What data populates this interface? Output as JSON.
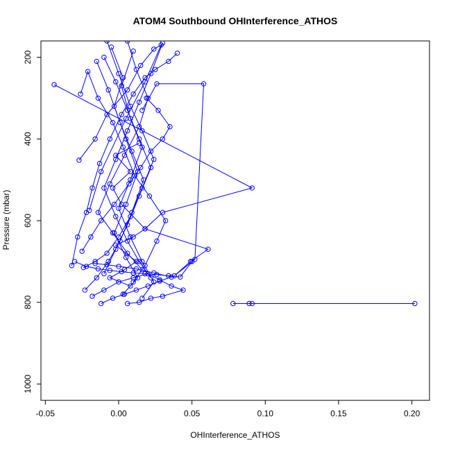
{
  "chart_data": {
    "type": "line",
    "title": "ATOM4 Southbound OHInterference_ATHOS",
    "xlabel": "OHInterference_ATHOS",
    "ylabel": "Pressure (mbar)",
    "xlim": [
      -0.053,
      0.212
    ],
    "ylim": [
      1040,
      160
    ],
    "y_reversed": true,
    "x_ticks": [
      -0.05,
      0.0,
      0.05,
      0.1,
      0.15,
      0.2
    ],
    "x_tick_labels": [
      "-0.05",
      "0.00",
      "0.05",
      "0.10",
      "0.15",
      "0.20"
    ],
    "y_ticks": [
      200,
      400,
      600,
      800,
      1000
    ],
    "y_tick_labels": [
      "200",
      "400",
      "600",
      "800",
      "1000"
    ],
    "grid": false,
    "marker": "open-circle",
    "color": "#0000ff",
    "series": [
      {
        "x": [
          0.202,
          0.091,
          0.089,
          0.078
        ],
        "y": [
          803,
          803,
          803,
          803
        ]
      },
      {
        "x": [
          0.016,
          0.026,
          0.058,
          0.052,
          0.038,
          0.049,
          0.061,
          0.018,
          0.002,
          -0.004,
          0.008,
          -0.002,
          0.014
        ],
        "y": [
          330,
          265,
          265,
          695,
          735,
          700,
          670,
          620,
          560,
          520,
          480,
          440,
          410
        ]
      },
      {
        "x": [
          -0.044,
          0.091,
          0.03,
          0.018,
          0.01,
          -0.002,
          0.012,
          0.004,
          -0.006,
          0.008
        ],
        "y": [
          267,
          520,
          580,
          620,
          640,
          660,
          700,
          720,
          740,
          760
        ]
      },
      {
        "x": [
          -0.026,
          -0.021,
          -0.014,
          -0.004,
          0.003,
          0.011,
          0.021,
          0.032,
          0.026,
          0.018,
          0.01
        ],
        "y": [
          290,
          235,
          300,
          360,
          420,
          490,
          540,
          600,
          650,
          710,
          750
        ]
      },
      {
        "x": [
          -0.027,
          -0.016,
          -0.008,
          0.006,
          0.015,
          0.024,
          0.029,
          0.018,
          0.005,
          -0.012,
          -0.02
        ],
        "y": [
          452,
          400,
          340,
          280,
          220,
          180,
          170,
          260,
          350,
          480,
          575
        ]
      },
      {
        "x": [
          -0.032,
          -0.028,
          -0.022,
          -0.018,
          -0.013,
          -0.006,
          0.002,
          0.01,
          0.018,
          0.025,
          0.034,
          0.04
        ],
        "y": [
          710,
          640,
          580,
          520,
          460,
          400,
          340,
          290,
          250,
          230,
          210,
          190
        ]
      },
      {
        "x": [
          -0.025,
          -0.019,
          -0.012,
          -0.003,
          0.007,
          0.015,
          0.022,
          0.03,
          0.035,
          0.027,
          0.019
        ],
        "y": [
          675,
          640,
          600,
          560,
          510,
          470,
          430,
          400,
          370,
          330,
          300
        ]
      },
      {
        "x": [
          -0.018,
          -0.01,
          0.0,
          0.01,
          0.02,
          0.028,
          0.036,
          0.044,
          0.03,
          0.022,
          0.014,
          0.006
        ],
        "y": [
          785,
          770,
          750,
          740,
          730,
          745,
          760,
          770,
          785,
          790,
          800,
          803
        ]
      },
      {
        "x": [
          -0.012,
          -0.004,
          0.004,
          0.012,
          0.02,
          0.028,
          0.036,
          0.024,
          0.012,
          0.0,
          -0.008,
          -0.016
        ],
        "y": [
          803,
          790,
          780,
          770,
          760,
          748,
          738,
          728,
          718,
          712,
          708,
          705
        ]
      },
      {
        "x": [
          -0.03,
          -0.022,
          -0.014,
          -0.006,
          0.002,
          0.01,
          0.018,
          0.026,
          0.034,
          0.042,
          0.05
        ],
        "y": [
          700,
          712,
          718,
          722,
          725,
          728,
          730,
          732,
          735,
          738,
          700
        ]
      },
      {
        "x": [
          -0.008,
          0.0,
          0.008,
          0.016,
          0.024,
          0.016,
          0.008,
          0.0,
          -0.008,
          -0.016,
          -0.024
        ],
        "y": [
          160,
          240,
          320,
          380,
          450,
          520,
          590,
          640,
          680,
          700,
          715
        ]
      },
      {
        "x": [
          0.006,
          0.012,
          0.02,
          0.014,
          0.004,
          -0.006,
          -0.014,
          -0.004,
          0.006,
          0.016
        ],
        "y": [
          160,
          230,
          300,
          370,
          440,
          510,
          580,
          630,
          680,
          720
        ]
      },
      {
        "x": [
          -0.01,
          -0.002,
          0.006,
          0.014,
          0.022,
          0.014,
          0.006,
          -0.002,
          -0.01
        ],
        "y": [
          200,
          260,
          330,
          400,
          470,
          540,
          610,
          670,
          730
        ]
      },
      {
        "x": [
          0.03,
          0.022,
          0.014,
          0.006,
          -0.002,
          -0.01,
          -0.002,
          0.006,
          0.014,
          0.022
        ],
        "y": [
          165,
          240,
          310,
          380,
          450,
          520,
          590,
          650,
          700,
          740
        ]
      },
      {
        "x": [
          -0.005,
          0.003,
          -0.003,
          0.005,
          0.013,
          0.005,
          -0.003,
          0.005,
          0.013,
          0.003
        ],
        "y": [
          175,
          250,
          320,
          400,
          480,
          560,
          630,
          690,
          740,
          780
        ]
      },
      {
        "x": [
          0.01,
          0.002,
          0.008,
          0.016,
          0.008,
          0.0,
          0.008,
          0.016,
          0.024,
          0.016
        ],
        "y": [
          185,
          270,
          350,
          420,
          500,
          570,
          640,
          700,
          750,
          790
        ]
      },
      {
        "x": [
          -0.015,
          -0.007,
          0.001,
          0.009,
          0.017,
          0.009,
          0.001,
          -0.007,
          -0.015,
          -0.023
        ],
        "y": [
          210,
          280,
          360,
          430,
          500,
          580,
          650,
          700,
          740,
          770
        ]
      }
    ]
  }
}
